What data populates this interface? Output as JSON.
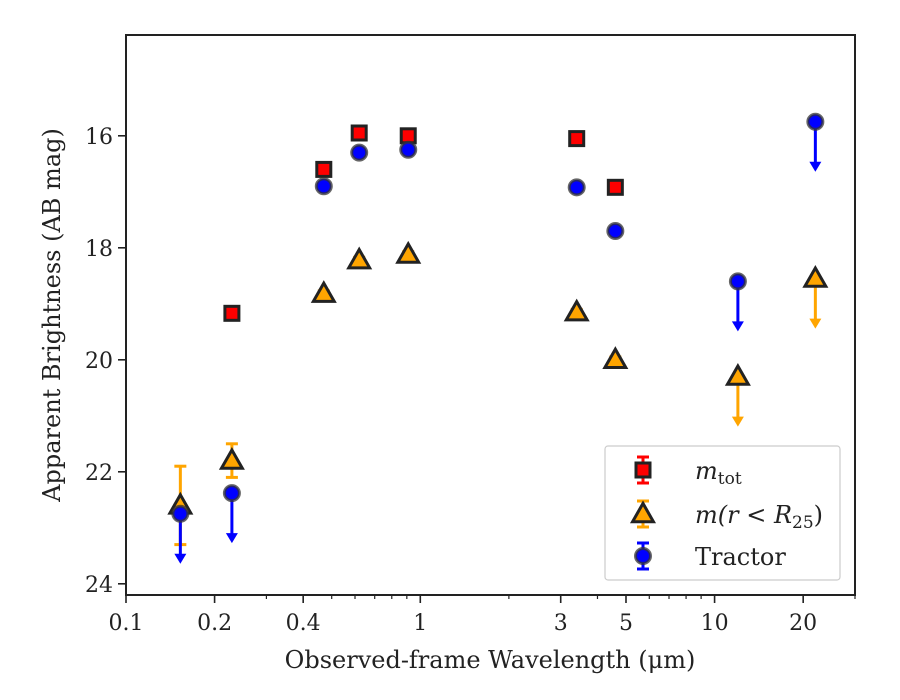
{
  "chart_data": {
    "type": "scatter",
    "xlabel": "Observed-frame Wavelength (μm)",
    "ylabel": "Apparent Brightness (AB mag)",
    "xscale": "log",
    "xlim": [
      0.1,
      30
    ],
    "ylim": [
      24.2,
      14.2
    ],
    "y_inverted": true,
    "x_ticks": [
      0.1,
      0.2,
      0.4,
      1,
      3,
      5,
      10,
      20
    ],
    "x_tick_labels": [
      "0.1",
      "0.2",
      "0.4",
      "1",
      "3",
      "5",
      "10",
      "20"
    ],
    "y_ticks": [
      16,
      18,
      20,
      22,
      24
    ],
    "y_tick_labels": [
      "16",
      "18",
      "20",
      "22",
      "24"
    ],
    "grid": false,
    "legend_position": "lower-right",
    "series": [
      {
        "name": "m_tot",
        "legend_label": {
          "var": "m",
          "sub": "tot"
        },
        "marker": "square",
        "color": "#ff0000",
        "edge_color": "#222222",
        "points": [
          {
            "x": 0.229,
            "y": 19.17,
            "err": 0.08
          },
          {
            "x": 0.47,
            "y": 16.6,
            "err": 0.06
          },
          {
            "x": 0.62,
            "y": 15.95,
            "err": 0.05
          },
          {
            "x": 0.91,
            "y": 16.0,
            "err": 0.05
          },
          {
            "x": 3.4,
            "y": 16.05,
            "err": 0.05
          },
          {
            "x": 4.6,
            "y": 16.92,
            "err": 0.05
          }
        ]
      },
      {
        "name": "m(r < R25)",
        "legend_label": {
          "prefix": "m(r < R",
          "sub": "25",
          "suffix": ")"
        },
        "marker": "triangle",
        "color": "#ffa500",
        "edge_color": "#222222",
        "points": [
          {
            "x": 0.153,
            "y": 22.6,
            "err_lo": 0.7,
            "err_hi": 0.7
          },
          {
            "x": 0.229,
            "y": 21.8,
            "err_lo": 0.3,
            "err_hi": 0.3
          },
          {
            "x": 0.47,
            "y": 18.82,
            "err": 0.05
          },
          {
            "x": 0.62,
            "y": 18.22,
            "err": 0.05
          },
          {
            "x": 0.91,
            "y": 18.12,
            "err": 0.05
          },
          {
            "x": 3.4,
            "y": 19.15,
            "err": 0.05
          },
          {
            "x": 4.6,
            "y": 20.0,
            "err": 0.05
          },
          {
            "x": 12.0,
            "y": 20.3,
            "upper_limit": true
          },
          {
            "x": 22.0,
            "y": 18.55,
            "upper_limit": true
          }
        ]
      },
      {
        "name": "Tractor",
        "legend_label": {
          "text": "Tractor"
        },
        "marker": "circle",
        "color": "#0000ff",
        "edge_color": "#333333",
        "points": [
          {
            "x": 0.153,
            "y": 22.75,
            "upper_limit": true
          },
          {
            "x": 0.229,
            "y": 22.38,
            "upper_limit": true
          },
          {
            "x": 0.47,
            "y": 16.9,
            "err": 0.05
          },
          {
            "x": 0.62,
            "y": 16.3,
            "err": 0.05
          },
          {
            "x": 0.91,
            "y": 16.25,
            "err": 0.05
          },
          {
            "x": 3.4,
            "y": 16.92,
            "err": 0.05
          },
          {
            "x": 4.6,
            "y": 17.7,
            "err": 0.05
          },
          {
            "x": 12.0,
            "y": 18.6,
            "upper_limit": true
          },
          {
            "x": 22.0,
            "y": 15.75,
            "upper_limit": true
          }
        ]
      }
    ]
  }
}
